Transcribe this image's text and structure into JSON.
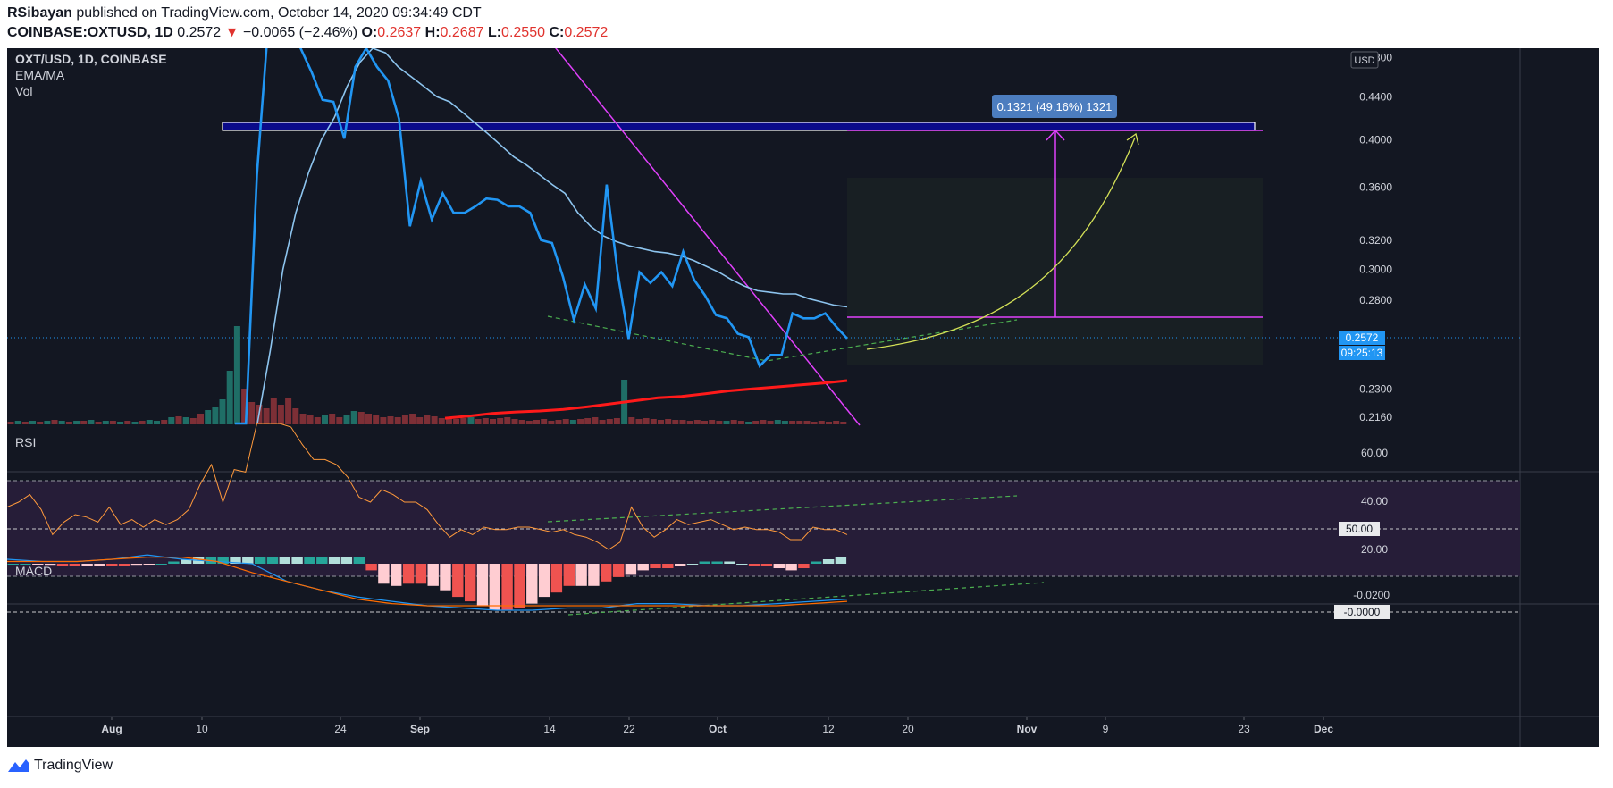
{
  "header": {
    "author": "RSibayan",
    "published_text": "published on TradingView.com, October 14, 2020 09:34:49 CDT",
    "symbol": "COINBASE:OXTUSD, 1D",
    "last": "0.2572",
    "change_arrow": "▼",
    "change": "−0.0065 (−2.46%)",
    "o_label": "O:",
    "o_value": "0.2637",
    "h_label": "H:",
    "h_value": "0.2687",
    "l_label": "L:",
    "l_value": "0.2550",
    "c_label": "C:",
    "c_value": "0.2572"
  },
  "legend": {
    "title": "OXT/USD, 1D, COINBASE",
    "indicator1": "EMA/MA",
    "indicator2": "Vol",
    "currency_badge": "USD"
  },
  "measure_label": "0.1321 (49.16%) 1321",
  "last_price_tag": "0.2572",
  "countdown_tag": "09:25:13",
  "rsi_label": "RSI",
  "rsi_value_tag": "50.00",
  "macd_label": "MACD",
  "macd_value_tag": "-0.0000",
  "footer": {
    "brand": "TradingView"
  },
  "colors": {
    "background": "#131722",
    "price_line": "#2196f3",
    "ema_line": "#8dc4ee",
    "ma_line": "#ff1a1a",
    "trendline": "#e040fb",
    "target_box": "#000080",
    "dashed_support": "#4caf50",
    "projection_arrow": "#d4e157",
    "rsi_line": "#ff9a3c",
    "rsi_band": "#2a1f3d",
    "vol_up": "#26a69a",
    "vol_down": "#ef5350",
    "macd_up": "#26a69a",
    "macd_down": "#ef5350",
    "macd_line": "#2196f3",
    "signal_line": "#ff6d00"
  },
  "chart_data": {
    "type": "line",
    "x_tick_labels": [
      "Aug",
      "10",
      "24",
      "Sep",
      "14",
      "22",
      "Oct",
      "12",
      "20",
      "Nov",
      "9",
      "23",
      "Dec"
    ],
    "price_axis": {
      "scale": "log",
      "tick_labels": [
        "0.4800",
        "0.4400",
        "0.4000",
        "0.3600",
        "0.3200",
        "0.3000",
        "0.2800",
        "0.2572",
        "0.2300",
        "0.2160"
      ],
      "range": [
        0.213,
        0.49
      ]
    },
    "series": [
      {
        "values": [
          0.18,
          0.2,
          0.37,
          0.62,
          0.6,
          0.55,
          0.49,
          0.465,
          0.437,
          0.435,
          0.401,
          0.47,
          0.49,
          0.47,
          0.456,
          0.419,
          0.33,
          0.365,
          0.335,
          0.355,
          0.34,
          0.34,
          0.345,
          0.351,
          0.35,
          0.345,
          0.345,
          0.34,
          0.32,
          0.318,
          0.295,
          0.268,
          0.29,
          0.275,
          0.362,
          0.298,
          0.257,
          0.298,
          0.291,
          0.298,
          0.289,
          0.312,
          0.293,
          0.283,
          0.271,
          0.269,
          0.26,
          0.258,
          0.242,
          0.248,
          0.248,
          0.272,
          0.269,
          0.269,
          0.272,
          0.264,
          0.2572
        ]
      },
      {
        "values": [
          0.2,
          0.25,
          0.3,
          0.34,
          0.372,
          0.4,
          0.42,
          0.45,
          0.475,
          0.49,
          0.485,
          0.47,
          0.46,
          0.45,
          0.44,
          0.435,
          0.425,
          0.415,
          0.405,
          0.395,
          0.385,
          0.378,
          0.37,
          0.362,
          0.355,
          0.34,
          0.33,
          0.323,
          0.319,
          0.316,
          0.314,
          0.312,
          0.311,
          0.309,
          0.306,
          0.302,
          0.298,
          0.293,
          0.289,
          0.286,
          0.285,
          0.284,
          0.284,
          0.281,
          0.279,
          0.277,
          0.276
        ]
      },
      {
        "values": [
          0.2155,
          0.2165,
          0.2178,
          0.2185,
          0.219,
          0.2198,
          0.221,
          0.2225,
          0.224,
          0.2255,
          0.2262,
          0.2275,
          0.229,
          0.23,
          0.231,
          0.232,
          0.233,
          0.2343
        ]
      }
    ],
    "volume": {
      "values": [
        3,
        4,
        3,
        4,
        3,
        4,
        5,
        4,
        3,
        4,
        4,
        5,
        3,
        4,
        4,
        3,
        4,
        3,
        4,
        5,
        4,
        5,
        8,
        9,
        8,
        7,
        12,
        16,
        20,
        28,
        60,
        110,
        40,
        25,
        22,
        18,
        30,
        22,
        30,
        18,
        12,
        10,
        8,
        10,
        12,
        8,
        10,
        15,
        14,
        12,
        10,
        8,
        9,
        8,
        10,
        12,
        8,
        10,
        9,
        7,
        8,
        6,
        7,
        8,
        6,
        7,
        6,
        7,
        8,
        6,
        5,
        4,
        5,
        6,
        4,
        5,
        6,
        5,
        6,
        7,
        8,
        5,
        6,
        7,
        50,
        8,
        6,
        7,
        6,
        5,
        6,
        5,
        5,
        4,
        5,
        4,
        5,
        4,
        4,
        5,
        4,
        3,
        4,
        5,
        4,
        5,
        4,
        4,
        4,
        4,
        3,
        4,
        3,
        4,
        3
      ],
      "up": [
        false,
        true,
        false,
        true,
        false,
        true,
        false,
        true,
        false,
        true,
        false,
        true,
        false,
        true,
        false,
        true,
        false,
        true,
        false,
        true,
        true,
        false,
        true,
        false,
        true,
        false,
        false,
        true,
        true,
        true,
        true,
        true,
        false,
        false,
        false,
        false,
        false,
        false,
        false,
        false,
        false,
        false,
        false,
        true,
        false,
        false,
        true,
        true,
        false,
        false,
        false,
        false,
        false,
        false,
        false,
        false,
        false,
        false,
        false,
        false,
        false,
        false,
        false,
        true,
        false,
        false,
        false,
        false,
        false,
        false,
        false,
        false,
        false,
        false,
        false,
        false,
        false,
        true,
        false,
        false,
        false,
        false,
        false,
        false,
        true,
        false,
        false,
        false,
        false,
        false,
        false,
        false,
        false,
        false,
        false,
        false,
        false,
        false,
        true,
        false,
        false,
        true,
        false,
        false,
        false,
        true,
        true,
        false,
        false,
        false,
        false,
        false,
        false,
        false,
        false
      ]
    },
    "rsi": {
      "levels": [
        70,
        50,
        30
      ],
      "tick_labels": [
        "60.00",
        "50.00",
        "40.00",
        "20.00"
      ],
      "range": [
        15,
        80
      ],
      "values": [
        53,
        55,
        58,
        52,
        42,
        47,
        50,
        49,
        47,
        53,
        46,
        48,
        45,
        48,
        46,
        48,
        52,
        62,
        70,
        55,
        68,
        67,
        88,
        92,
        95,
        85,
        78,
        72,
        72,
        70,
        65,
        57,
        55,
        60,
        58,
        55,
        55,
        52,
        46,
        41,
        44,
        42,
        45,
        44,
        44,
        45,
        45,
        44,
        43,
        44,
        42,
        41,
        39,
        36,
        39,
        53,
        45,
        41,
        44,
        48,
        46,
        47,
        48,
        46,
        44,
        45,
        44,
        44,
        43,
        40,
        40,
        45,
        44,
        44,
        42
      ]
    },
    "macd": {
      "tick_labels": [
        "-0.0000",
        "-0.0200"
      ],
      "range": [
        -0.03,
        0.003
      ],
      "histogram": [
        0,
        0,
        -0.0003,
        -0.0005,
        -0.0008,
        -0.001,
        -0.0012,
        -0.0012,
        -0.001,
        -0.0008,
        -0.0005,
        -0.0003,
        0,
        0.001,
        0.002,
        0.003,
        0.003,
        0.003,
        0.003,
        0.003,
        0.003,
        0.003,
        0.003,
        0.003,
        0.003,
        0.003,
        0.003,
        0.003,
        0.003,
        -0.003,
        -0.009,
        -0.01,
        -0.009,
        -0.009,
        -0.01,
        -0.012,
        -0.015,
        -0.017,
        -0.019,
        -0.021,
        -0.021,
        -0.02,
        -0.018,
        -0.015,
        -0.013,
        -0.01,
        -0.01,
        -0.01,
        -0.008,
        -0.006,
        -0.005,
        -0.003,
        -0.002,
        -0.002,
        -0.001,
        0,
        0.001,
        0.001,
        0.001,
        0,
        -0.001,
        -0.001,
        -0.002,
        -0.003,
        -0.002,
        0.001,
        0.002,
        0.003
      ],
      "macd_line": [
        0.002,
        0.001,
        0.001,
        0.002,
        0.004,
        0.002,
        0.001,
        0.0,
        -0.008,
        -0.012,
        -0.015,
        -0.017,
        -0.019,
        -0.02,
        -0.021,
        -0.021,
        -0.02,
        -0.02,
        -0.018,
        -0.018,
        -0.019,
        -0.019,
        -0.018,
        -0.017,
        -0.016
      ],
      "signal_line": [
        0.001,
        0.001,
        0.001,
        0.002,
        0.003,
        0.003,
        0.001,
        -0.004,
        -0.008,
        -0.012,
        -0.016,
        -0.018,
        -0.019,
        -0.019,
        -0.019,
        -0.019,
        -0.019,
        -0.019,
        -0.019,
        -0.019,
        -0.019,
        -0.019,
        -0.019,
        -0.018,
        -0.017
      ]
    }
  }
}
